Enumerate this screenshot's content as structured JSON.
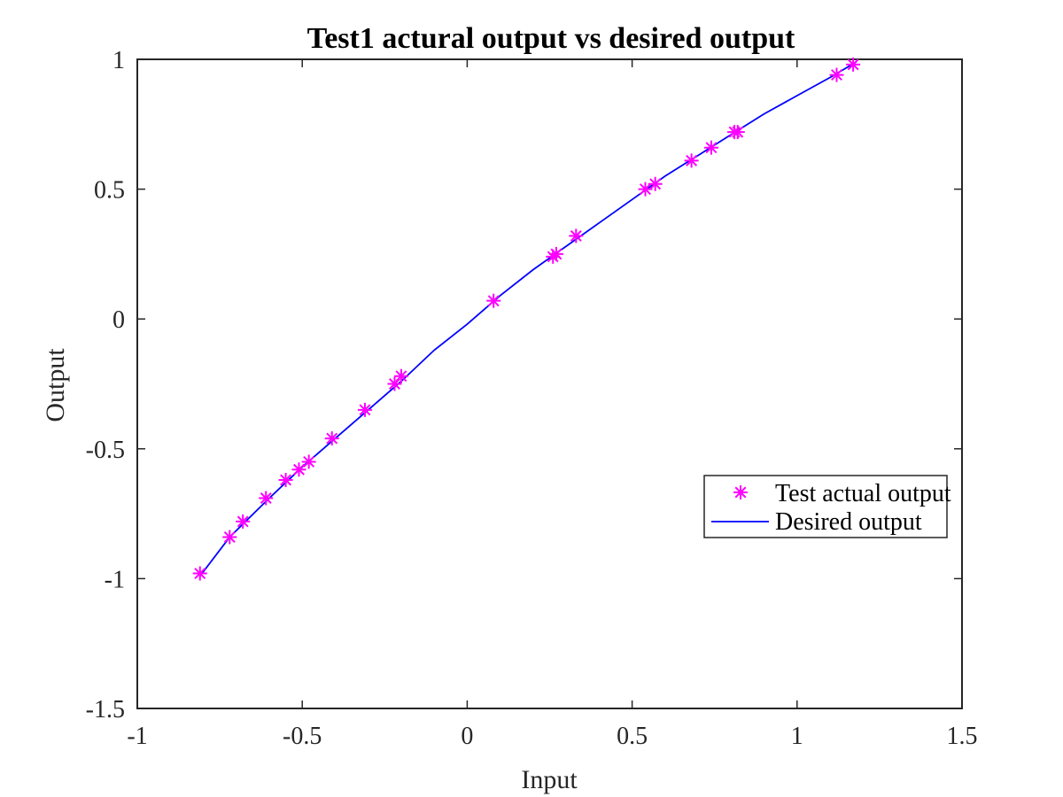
{
  "chart_data": {
    "type": "line",
    "title": "Test1 actural output vs desired output",
    "xlabel": "Input",
    "ylabel": "Output",
    "xlim": [
      -1,
      1.5
    ],
    "ylim": [
      -1.5,
      1
    ],
    "xticks": [
      -1,
      -0.5,
      0,
      0.5,
      1,
      1.5
    ],
    "yticks": [
      -1.5,
      -1,
      -0.5,
      0,
      0.5,
      1
    ],
    "xtick_labels": [
      "-1",
      "-0.5",
      "0",
      "0.5",
      "1",
      "1.5"
    ],
    "ytick_labels": [
      "-1.5",
      "-1",
      "-0.5",
      "0",
      "0.5",
      "1"
    ],
    "grid": false,
    "legend_position": "right",
    "series": [
      {
        "name": "Test actual output",
        "kind": "scatter",
        "marker": "asterisk",
        "color": "#ff00ff",
        "x": [
          -0.81,
          -0.72,
          -0.68,
          -0.61,
          -0.55,
          -0.51,
          -0.48,
          -0.41,
          -0.31,
          -0.22,
          -0.2,
          0.08,
          0.26,
          0.27,
          0.33,
          0.54,
          0.57,
          0.68,
          0.74,
          0.81,
          0.82,
          1.12,
          1.17
        ],
        "y": [
          -0.98,
          -0.84,
          -0.78,
          -0.69,
          -0.62,
          -0.58,
          -0.55,
          -0.46,
          -0.35,
          -0.25,
          -0.22,
          0.07,
          0.24,
          0.25,
          0.32,
          0.5,
          0.52,
          0.61,
          0.66,
          0.72,
          0.72,
          0.94,
          0.98
        ]
      },
      {
        "name": "Desired output",
        "kind": "line",
        "color": "#0000ff",
        "x": [
          -0.81,
          -0.72,
          -0.6,
          -0.5,
          -0.4,
          -0.3,
          -0.2,
          -0.1,
          0,
          0.1,
          0.2,
          0.3,
          0.4,
          0.5,
          0.6,
          0.7,
          0.8,
          0.9,
          1.0,
          1.1,
          1.18
        ],
        "y": [
          -0.99,
          -0.84,
          -0.69,
          -0.57,
          -0.46,
          -0.35,
          -0.24,
          -0.12,
          -0.02,
          0.09,
          0.19,
          0.28,
          0.37,
          0.46,
          0.55,
          0.63,
          0.71,
          0.79,
          0.86,
          0.93,
          0.99
        ]
      }
    ]
  }
}
